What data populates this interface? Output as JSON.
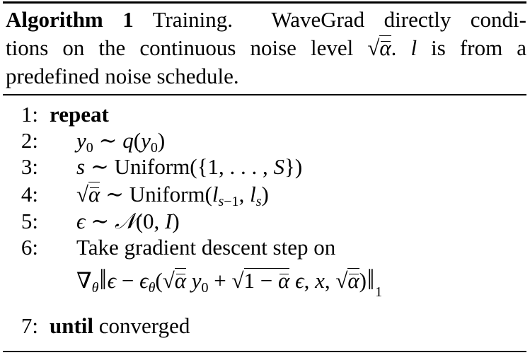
{
  "caption": {
    "label": "Algorithm 1",
    "title": "Training.",
    "text_part1": "WaveGrad directly condi-",
    "text_part2a": "tions on the continuous noise level",
    "text_part2b": ". ",
    "l_var": "l",
    "text_part2c": " is from a",
    "text_part3": "predefined noise schedule."
  },
  "lines": [
    {
      "num": "1:",
      "keyword": "repeat"
    },
    {
      "num": "2:",
      "math": "y0 ~ q(y0)"
    },
    {
      "num": "3:",
      "math": "s ~ Uniform({1, . . . , S})"
    },
    {
      "num": "4:",
      "math": "√ᾱ ~ Uniform(l_{s−1}, l_s)"
    },
    {
      "num": "5:",
      "math": "ε ~ N(0, I)"
    },
    {
      "num": "6:",
      "text": "Take gradient descent step on",
      "math2": "∇θ ‖ε − εθ(√ᾱ y0 + √(1 − ᾱ) ε, x, √ᾱ)‖1"
    },
    {
      "num": "7:",
      "keyword": "until",
      "text": "converged"
    }
  ]
}
